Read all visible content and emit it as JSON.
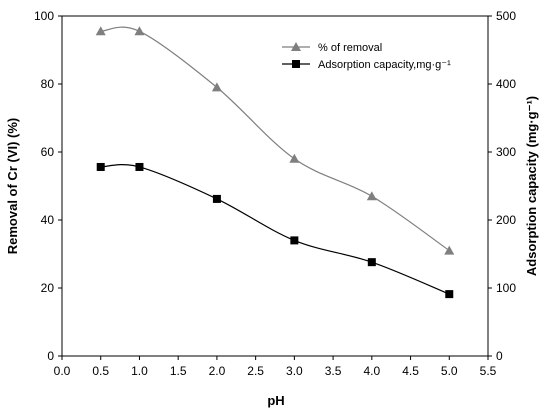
{
  "chart_data": {
    "type": "line",
    "title": "",
    "xlabel": "pH",
    "ylabel_left": "Removal of Cr (VI) (%)",
    "ylabel_right": "Adsorption capacity (mg·g⁻¹)",
    "xlim": [
      0.0,
      5.5
    ],
    "ylim_left": [
      0,
      100
    ],
    "ylim_right": [
      0,
      500
    ],
    "x_ticks": [
      "0.0",
      "0.5",
      "1.0",
      "1.5",
      "2.0",
      "2.5",
      "3.0",
      "3.5",
      "4.0",
      "4.5",
      "5.0",
      "5.5"
    ],
    "y_left_ticks": [
      "0",
      "20",
      "40",
      "60",
      "80",
      "100"
    ],
    "y_right_ticks": [
      "0",
      "100",
      "200",
      "300",
      "400",
      "500"
    ],
    "grid": false,
    "legend_position": "top-right",
    "x": [
      0.5,
      1.0,
      2.0,
      3.0,
      4.0,
      5.0
    ],
    "series": [
      {
        "name": "% of removal",
        "axis": "left",
        "marker": "triangle",
        "color": "#7f7f7f",
        "values": [
          95.5,
          95.5,
          79,
          58,
          47,
          31
        ]
      },
      {
        "name": "Adsorption capacity,mg·g⁻¹",
        "axis": "right",
        "marker": "square",
        "color": "#000000",
        "values": [
          278,
          278,
          231,
          170,
          138,
          91
        ]
      }
    ]
  }
}
